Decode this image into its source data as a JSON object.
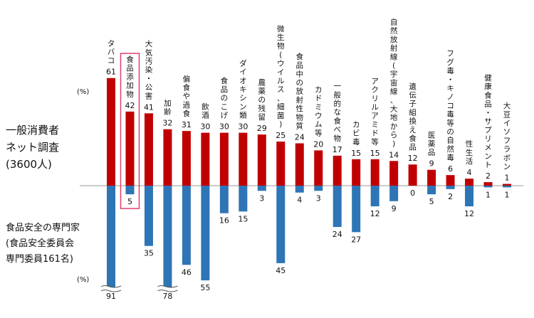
{
  "chart_data": {
    "type": "bar",
    "colors": {
      "consumer": "#c00000",
      "expert": "#2e75b6",
      "highlight": "#e0406a"
    },
    "unit_label": "(%)",
    "top_group_label": [
      "一般消費者",
      "ネット調査",
      "(3600人)"
    ],
    "bottom_group_label": [
      "食品安全の専門家",
      "(食品安全委員会",
      "専門委員161名)"
    ],
    "categories": [
      "タバコ",
      "食品添加物",
      "大気汚染・公害",
      "加齢",
      "偏食や過食",
      "飲酒",
      "食品のこげ",
      "ダイオキシン類",
      "農薬の残留",
      "微生物(ウイルス、細菌)",
      "食品中の放射性物質",
      "カドミウム等",
      "一般的な食べ物",
      "カビ毒",
      "アクリルアミド等",
      "自然放射線(宇宙線、大地から)",
      "遺伝子組換え食品",
      "医薬品",
      "フグ毒・キノコ毒等の自然毒",
      "性生活",
      "健康食品・サプリメント",
      "大豆イソフラボン"
    ],
    "series": [
      {
        "values": [
          61,
          42,
          41,
          32,
          31,
          30,
          30,
          30,
          29,
          25,
          24,
          20,
          17,
          15,
          15,
          14,
          12,
          9,
          6,
          4,
          2,
          1
        ]
      },
      {
        "values": [
          91,
          5,
          35,
          78,
          46,
          55,
          16,
          15,
          3,
          45,
          4,
          3,
          24,
          27,
          12,
          9,
          0,
          5,
          2,
          12,
          1,
          1
        ]
      }
    ],
    "axis_break_categories": [
      "タバコ",
      "加齢"
    ],
    "highlighted_category": "食品添加物"
  }
}
